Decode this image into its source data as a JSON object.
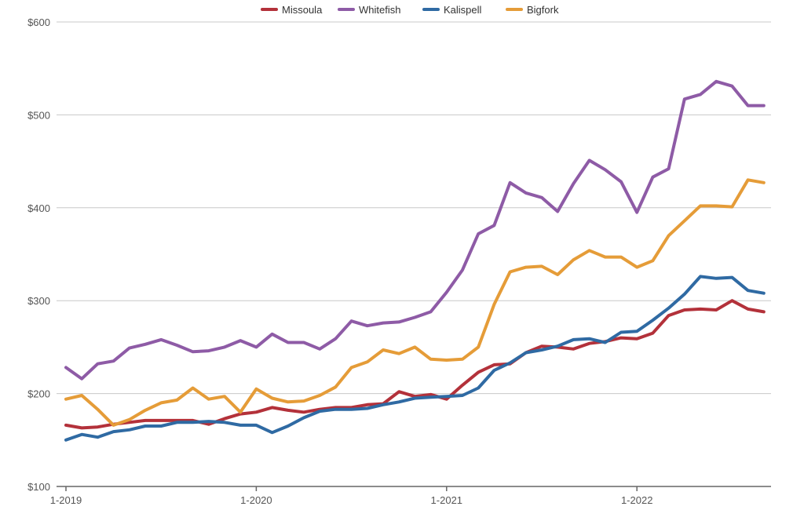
{
  "chart_data": {
    "type": "line",
    "title": "",
    "xlabel": "",
    "ylabel": "",
    "ylim": [
      100,
      600
    ],
    "y_ticks": [
      100,
      200,
      300,
      400,
      500,
      600
    ],
    "y_tick_labels": [
      "$100",
      "$200",
      "$300",
      "$400",
      "$500",
      "$600"
    ],
    "x_range_months": [
      "1-2019",
      "9-2022"
    ],
    "x_ticks": [
      "1-2019",
      "1-2020",
      "1-2021",
      "1-2022"
    ],
    "legend_position": "top-center",
    "grid": "horizontal",
    "x": [
      "1-2019",
      "2-2019",
      "3-2019",
      "4-2019",
      "5-2019",
      "6-2019",
      "7-2019",
      "8-2019",
      "9-2019",
      "10-2019",
      "11-2019",
      "12-2019",
      "1-2020",
      "2-2020",
      "3-2020",
      "4-2020",
      "5-2020",
      "6-2020",
      "7-2020",
      "8-2020",
      "9-2020",
      "10-2020",
      "11-2020",
      "12-2020",
      "1-2021",
      "2-2021",
      "3-2021",
      "4-2021",
      "5-2021",
      "6-2021",
      "7-2021",
      "8-2021",
      "9-2021",
      "10-2021",
      "11-2021",
      "12-2021",
      "1-2022",
      "2-2022",
      "3-2022",
      "4-2022",
      "5-2022",
      "6-2022",
      "7-2022",
      "8-2022",
      "9-2022"
    ],
    "series": [
      {
        "name": "Missoula",
        "color": "#b3313a",
        "values": [
          166,
          163,
          164,
          167,
          169,
          171,
          171,
          171,
          171,
          167,
          173,
          178,
          180,
          185,
          182,
          180,
          183,
          185,
          185,
          188,
          189,
          202,
          197,
          199,
          194,
          209,
          223,
          231,
          232,
          244,
          251,
          250,
          248,
          254,
          256,
          260,
          259,
          265,
          284,
          290,
          291,
          290,
          300,
          291,
          288
        ]
      },
      {
        "name": "Whitefish",
        "color": "#8e5ba6",
        "values": [
          228,
          216,
          232,
          235,
          249,
          253,
          258,
          252,
          245,
          246,
          250,
          257,
          250,
          264,
          255,
          255,
          248,
          259,
          278,
          273,
          276,
          277,
          282,
          288,
          309,
          333,
          372,
          381,
          427,
          416,
          411,
          396,
          426,
          451,
          441,
          428,
          395,
          433,
          442,
          517,
          522,
          536,
          531,
          510,
          510
        ]
      },
      {
        "name": "Kalispell",
        "color": "#2f6aa3",
        "values": [
          150,
          156,
          153,
          159,
          161,
          165,
          165,
          169,
          169,
          170,
          169,
          166,
          166,
          158,
          165,
          174,
          181,
          183,
          183,
          184,
          188,
          191,
          195,
          196,
          197,
          198,
          206,
          225,
          233,
          244,
          247,
          251,
          258,
          259,
          255,
          266,
          267,
          279,
          292,
          307,
          326,
          324,
          325,
          311,
          308
        ]
      },
      {
        "name": "Bigfork",
        "color": "#e59c38",
        "values": [
          194,
          198,
          183,
          166,
          172,
          182,
          190,
          193,
          206,
          194,
          197,
          180,
          205,
          195,
          191,
          192,
          198,
          207,
          228,
          234,
          247,
          243,
          250,
          237,
          236,
          237,
          250,
          296,
          331,
          336,
          337,
          328,
          344,
          354,
          347,
          347,
          336,
          343,
          370,
          386,
          402,
          402,
          401,
          430,
          427
        ]
      }
    ]
  }
}
